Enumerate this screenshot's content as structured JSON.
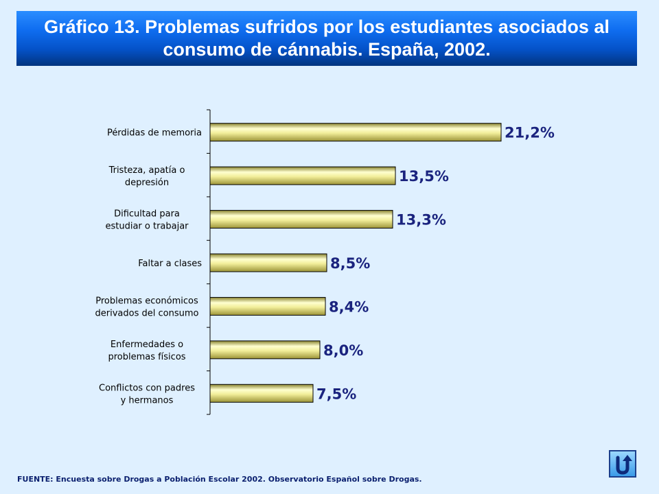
{
  "title": "Gráfico 13. Problemas sufridos por los estudiantes asociados al consumo de cánnabis. España, 2002.",
  "source": "FUENTE: Encuesta sobre Drogas a Población Escolar 2002. Observatorio Español sobre Drogas.",
  "colors": {
    "bar_fill_light": "#ffffd0",
    "bar_fill_dark": "#b8b050",
    "value_label": "#1a237e",
    "background": "#dff0ff"
  },
  "nav": {
    "return_icon": "u-turn-return-icon"
  },
  "chart_data": {
    "type": "bar",
    "orientation": "horizontal",
    "categories": [
      [
        "Pérdidas de memoria"
      ],
      [
        "Tristeza, apatía o",
        "depresión"
      ],
      [
        "Dificultad para",
        "estudiar o trabajar"
      ],
      [
        "Faltar a clases"
      ],
      [
        "Problemas económicos",
        "derivados del consumo"
      ],
      [
        "Enfermedades o",
        "problemas físicos"
      ],
      [
        "Conflictos con padres",
        "y hermanos"
      ]
    ],
    "values": [
      21.2,
      13.5,
      13.3,
      8.5,
      8.4,
      8.0,
      7.5
    ],
    "value_labels": [
      "21,2%",
      "13,5%",
      "13,3%",
      "8,5%",
      "8,4%",
      "8,0%",
      "7,5%"
    ],
    "xlim": [
      0,
      25
    ],
    "grid": false,
    "legend": "none"
  }
}
